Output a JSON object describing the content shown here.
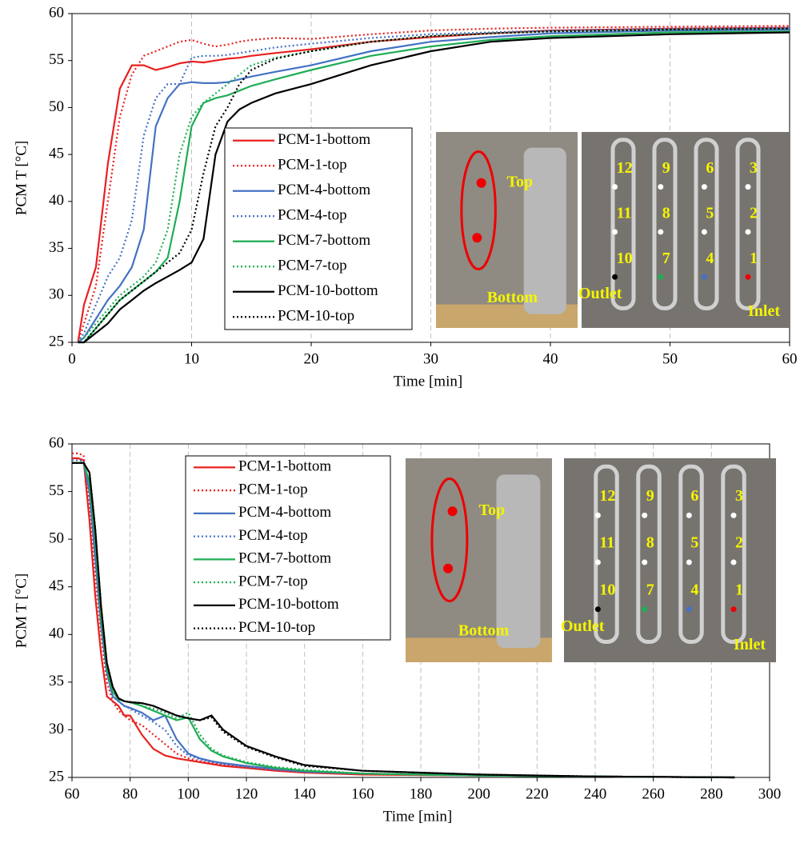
{
  "chart_data": [
    {
      "type": "line",
      "xlabel": "Time [min]",
      "ylabel": "PCM T [°C]",
      "x": [
        0.5,
        1,
        2,
        3,
        4,
        5,
        6,
        7,
        8,
        9,
        10,
        11,
        12,
        13,
        14,
        15,
        17,
        20,
        25,
        30,
        35,
        40,
        50,
        60
      ],
      "xlim": [
        0,
        60
      ],
      "xticks": [
        0,
        10,
        20,
        30,
        40,
        50,
        60
      ],
      "ylim": [
        25,
        60
      ],
      "yticks": [
        25,
        30,
        35,
        40,
        45,
        50,
        55,
        60
      ],
      "grid": "x",
      "series": [
        {
          "name": "PCM-1-bottom",
          "color": "#e8211f",
          "linestyle": "solid",
          "values": [
            25,
            29,
            33,
            44,
            52,
            54.5,
            54.5,
            54,
            54.3,
            54.7,
            54.9,
            54.8,
            55,
            55.2,
            55.3,
            55.5,
            55.8,
            56.2,
            57,
            57.5,
            57.9,
            58.2,
            58.4,
            58.5
          ]
        },
        {
          "name": "PCM-1-top",
          "color": "#e8211f",
          "linestyle": "dotted",
          "values": [
            25,
            27,
            31,
            40,
            49,
            53.5,
            55.5,
            56,
            56.5,
            57,
            57.2,
            56.8,
            56.5,
            56.7,
            57,
            57.2,
            57.4,
            57.3,
            57.8,
            58.2,
            58.4,
            58.5,
            58.6,
            58.7
          ]
        },
        {
          "name": "PCM-4-bottom",
          "color": "#4472c4",
          "linestyle": "solid",
          "values": [
            25,
            25.5,
            27.5,
            29.5,
            31,
            33,
            37,
            48,
            51,
            52.5,
            52.7,
            52.6,
            52.6,
            52.7,
            53,
            53.3,
            53.8,
            54.5,
            56,
            57,
            57.5,
            57.9,
            58.2,
            58.3
          ]
        },
        {
          "name": "PCM-4-top",
          "color": "#4472c4",
          "linestyle": "dotted",
          "values": [
            25,
            26,
            29,
            32,
            34,
            38,
            47,
            51,
            52.5,
            52.5,
            55.3,
            55.5,
            55.5,
            55.6,
            55.8,
            56,
            56.4,
            56.8,
            57.4,
            57.8,
            58,
            58.2,
            58.4,
            58.5
          ]
        },
        {
          "name": "PCM-7-bottom",
          "color": "#1fad55",
          "linestyle": "solid",
          "values": [
            25,
            25,
            26.5,
            28,
            29.5,
            30.5,
            31.5,
            32.5,
            34,
            40,
            48,
            50.5,
            51,
            51.3,
            51.8,
            52.3,
            53,
            54,
            55.5,
            56.5,
            57.2,
            57.6,
            58,
            58.1
          ]
        },
        {
          "name": "PCM-7-top",
          "color": "#1fad55",
          "linestyle": "dotted",
          "values": [
            25,
            25.5,
            27,
            28.5,
            30,
            31,
            32,
            33.5,
            37,
            45,
            49,
            50.5,
            51.5,
            52.5,
            53.5,
            54.5,
            55.3,
            56,
            57,
            57.6,
            57.9,
            58.1,
            58.3,
            58.4
          ]
        },
        {
          "name": "PCM-10-bottom",
          "color": "#000000",
          "linestyle": "solid",
          "values": [
            25,
            25,
            26,
            27,
            28.5,
            29.5,
            30.5,
            31.3,
            32,
            32.7,
            33.5,
            36,
            45,
            48.5,
            49.8,
            50.5,
            51.5,
            52.5,
            54.5,
            56,
            57,
            57.4,
            57.8,
            58
          ]
        },
        {
          "name": "PCM-10-top",
          "color": "#000000",
          "linestyle": "dotted",
          "values": [
            25,
            25,
            26.5,
            28,
            29.5,
            30.5,
            31.5,
            32.5,
            33.5,
            34.5,
            37,
            43,
            48,
            50,
            52.5,
            54,
            55.2,
            56,
            57,
            57.6,
            57.9,
            58.1,
            58.3,
            58.4
          ]
        }
      ],
      "annotations": [
        "Top",
        "Bottom",
        "12",
        "9",
        "6",
        "3",
        "11",
        "8",
        "5",
        "2",
        "10",
        "7",
        "4",
        "1",
        "Outlet",
        "Inlet"
      ]
    },
    {
      "type": "line",
      "xlabel": "Time [min]",
      "ylabel": "PCM T [°C]",
      "x": [
        60,
        62,
        64,
        66,
        68,
        70,
        72,
        74,
        76,
        78,
        80,
        84,
        88,
        92,
        96,
        100,
        104,
        108,
        112,
        120,
        130,
        140,
        160,
        200,
        240,
        288
      ],
      "xlim": [
        60,
        300
      ],
      "xticks": [
        60,
        80,
        100,
        120,
        140,
        160,
        180,
        200,
        220,
        240,
        260,
        280,
        300
      ],
      "ylim": [
        25,
        60
      ],
      "yticks": [
        25,
        30,
        35,
        40,
        45,
        50,
        55,
        60
      ],
      "grid": "x",
      "series": [
        {
          "name": "PCM-1-bottom",
          "color": "#e8211f",
          "linestyle": "solid",
          "values": [
            58.5,
            58.5,
            58.3,
            52,
            44,
            38,
            33.5,
            33,
            32.5,
            31.5,
            31.5,
            29.5,
            28,
            27.3,
            27,
            26.8,
            26.6,
            26.4,
            26.2,
            26,
            25.7,
            25.5,
            25.3,
            25.2,
            25.1,
            25
          ]
        },
        {
          "name": "PCM-1-top",
          "color": "#e8211f",
          "linestyle": "dotted",
          "values": [
            59,
            59,
            58.8,
            54,
            46,
            40,
            35,
            33,
            32,
            31.5,
            31,
            30.5,
            29.5,
            28.5,
            27.5,
            27,
            26.7,
            26.5,
            26.3,
            26.1,
            25.8,
            25.6,
            25.3,
            25.2,
            25.1,
            25
          ]
        },
        {
          "name": "PCM-4-bottom",
          "color": "#4472c4",
          "linestyle": "solid",
          "values": [
            58,
            58,
            58,
            55,
            48,
            41,
            36,
            33.5,
            33,
            32.5,
            32.3,
            31.8,
            31,
            31.5,
            29,
            27.5,
            27,
            26.7,
            26.5,
            26.2,
            25.9,
            25.6,
            25.4,
            25.2,
            25.1,
            25
          ]
        },
        {
          "name": "PCM-4-top",
          "color": "#4472c4",
          "linestyle": "dotted",
          "values": [
            58.3,
            58.3,
            58.2,
            55,
            48,
            41,
            36,
            33.5,
            33,
            32.5,
            32.2,
            31.5,
            30.8,
            30,
            28.3,
            27.3,
            26.9,
            26.6,
            26.4,
            26.1,
            25.8,
            25.6,
            25.4,
            25.2,
            25.1,
            25
          ]
        },
        {
          "name": "PCM-7-bottom",
          "color": "#1fad55",
          "linestyle": "solid",
          "values": [
            58,
            58,
            58,
            56,
            50,
            42,
            36.5,
            34,
            33.2,
            33,
            32.9,
            32.5,
            32,
            31.5,
            31,
            31.3,
            29,
            27.8,
            27.2,
            26.5,
            26,
            25.7,
            25.4,
            25.2,
            25.1,
            25
          ]
        },
        {
          "name": "PCM-7-top",
          "color": "#1fad55",
          "linestyle": "dotted",
          "values": [
            58,
            58,
            58,
            56,
            50,
            42,
            36.5,
            34,
            33.2,
            33,
            32.9,
            32.5,
            32.2,
            31.8,
            31.2,
            31.8,
            29.5,
            28,
            27.3,
            26.6,
            26.1,
            25.8,
            25.4,
            25.2,
            25.1,
            25
          ]
        },
        {
          "name": "PCM-10-bottom",
          "color": "#000000",
          "linestyle": "solid",
          "values": [
            58,
            58,
            58,
            57,
            51,
            43,
            37,
            34.5,
            33.3,
            33,
            32.9,
            32.8,
            32.5,
            32,
            31.5,
            31.2,
            31,
            31.5,
            30,
            28.3,
            27.2,
            26.3,
            25.7,
            25.3,
            25.1,
            25
          ]
        },
        {
          "name": "PCM-10-top",
          "color": "#000000",
          "linestyle": "dotted",
          "values": [
            58,
            58,
            58,
            57,
            51,
            43,
            37,
            34.5,
            33.3,
            33,
            32.9,
            32.8,
            32.5,
            32,
            31.5,
            31.2,
            31,
            31.3,
            29.8,
            28.2,
            27.1,
            26.2,
            25.7,
            25.3,
            25.1,
            25
          ]
        }
      ],
      "annotations": [
        "Top",
        "Bottom",
        "12",
        "9",
        "6",
        "3",
        "11",
        "8",
        "5",
        "2",
        "10",
        "7",
        "4",
        "1",
        "Outlet",
        "Inlet"
      ]
    }
  ]
}
